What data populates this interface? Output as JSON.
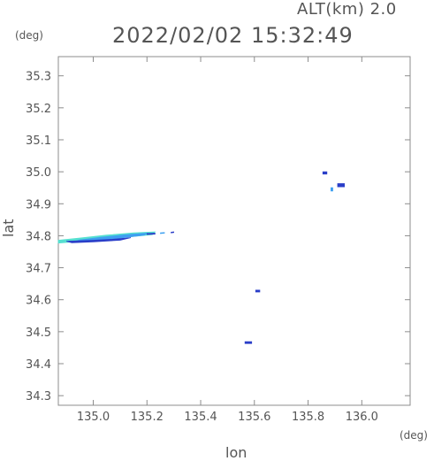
{
  "header": {
    "altitude": "ALT(km) 2.0",
    "timestamp": "2022/02/02 15:32:49"
  },
  "chart_data": {
    "type": "heatmap",
    "title": "2022/02/02 15:32:49",
    "xlabel": "lon",
    "ylabel": "lat",
    "x_unit": "(deg)",
    "y_unit": "(deg)",
    "xlim": [
      134.87,
      136.18
    ],
    "ylim": [
      34.27,
      35.36
    ],
    "xticks": [
      135.0,
      135.2,
      135.4,
      135.6,
      135.8,
      136.0
    ],
    "xtick_labels": [
      "135.0",
      "135.2",
      "135.4",
      "135.6",
      "135.8",
      "136.0"
    ],
    "yticks": [
      34.3,
      34.4,
      34.5,
      34.6,
      34.7,
      34.8,
      34.9,
      35.0,
      35.1,
      35.2,
      35.3
    ],
    "ytick_labels": [
      "34.3",
      "34.4",
      "34.5",
      "34.6",
      "34.7",
      "34.8",
      "34.9",
      "35.0",
      "35.1",
      "35.2",
      "35.3"
    ],
    "grid": false,
    "colors": {
      "axis": "#8c8c8c",
      "text": "#555555",
      "low": "#56e0d0",
      "mid": "#3fa0f0",
      "high": "#2a3ec8"
    },
    "echoes": [
      {
        "name": "band-outer",
        "level": "low",
        "points": [
          [
            134.87,
            34.786
          ],
          [
            134.95,
            34.793
          ],
          [
            135.05,
            34.802
          ],
          [
            135.15,
            34.809
          ],
          [
            135.23,
            34.812
          ],
          [
            135.22,
            34.803
          ],
          [
            135.1,
            34.794
          ],
          [
            135.0,
            34.786
          ],
          [
            134.9,
            34.779
          ],
          [
            134.87,
            34.777
          ]
        ]
      },
      {
        "name": "band-mid",
        "level": "mid",
        "points": [
          [
            134.95,
            34.787
          ],
          [
            135.03,
            34.795
          ],
          [
            135.12,
            34.803
          ],
          [
            135.2,
            34.808
          ],
          [
            135.19,
            34.802
          ],
          [
            135.08,
            34.791
          ],
          [
            134.98,
            34.783
          ],
          [
            134.92,
            34.78
          ]
        ]
      },
      {
        "name": "band-core",
        "level": "high",
        "points": [
          [
            134.9,
            34.783
          ],
          [
            135.0,
            34.786
          ],
          [
            135.07,
            34.789
          ],
          [
            135.14,
            34.794
          ],
          [
            135.1,
            34.786
          ],
          [
            135.0,
            34.781
          ],
          [
            134.92,
            34.778
          ]
        ]
      },
      {
        "name": "band-tail-1",
        "level": "high",
        "points": [
          [
            135.2,
            34.807
          ],
          [
            135.23,
            34.808
          ],
          [
            135.23,
            34.805
          ],
          [
            135.2,
            34.804
          ]
        ]
      },
      {
        "name": "band-tail-2",
        "level": "mid",
        "points": [
          [
            135.25,
            34.809
          ],
          [
            135.265,
            34.81
          ],
          [
            135.265,
            34.808
          ],
          [
            135.25,
            34.807
          ]
        ]
      },
      {
        "name": "band-tail-3",
        "level": "high",
        "points": [
          [
            135.29,
            34.811
          ],
          [
            135.3,
            34.812
          ],
          [
            135.3,
            34.81
          ],
          [
            135.29,
            34.809
          ]
        ]
      },
      {
        "name": "cell-ne-1",
        "level": "high",
        "points": [
          [
            135.855,
            35.0
          ],
          [
            135.87,
            35.0
          ],
          [
            135.87,
            34.993
          ],
          [
            135.855,
            34.993
          ]
        ]
      },
      {
        "name": "cell-ne-2",
        "level": "high",
        "points": [
          [
            135.91,
            34.963
          ],
          [
            135.935,
            34.963
          ],
          [
            135.935,
            34.953
          ],
          [
            135.91,
            34.953
          ]
        ]
      },
      {
        "name": "cell-ne-3",
        "level": "mid",
        "points": [
          [
            135.885,
            34.95
          ],
          [
            135.892,
            34.95
          ],
          [
            135.892,
            34.94
          ],
          [
            135.885,
            34.94
          ]
        ]
      },
      {
        "name": "cell-center",
        "level": "high",
        "points": [
          [
            135.605,
            34.63
          ],
          [
            135.62,
            34.63
          ],
          [
            135.62,
            34.624
          ],
          [
            135.605,
            34.624
          ]
        ]
      },
      {
        "name": "cell-south",
        "level": "high",
        "points": [
          [
            135.565,
            34.469
          ],
          [
            135.59,
            34.469
          ],
          [
            135.59,
            34.463
          ],
          [
            135.565,
            34.463
          ]
        ]
      }
    ]
  }
}
